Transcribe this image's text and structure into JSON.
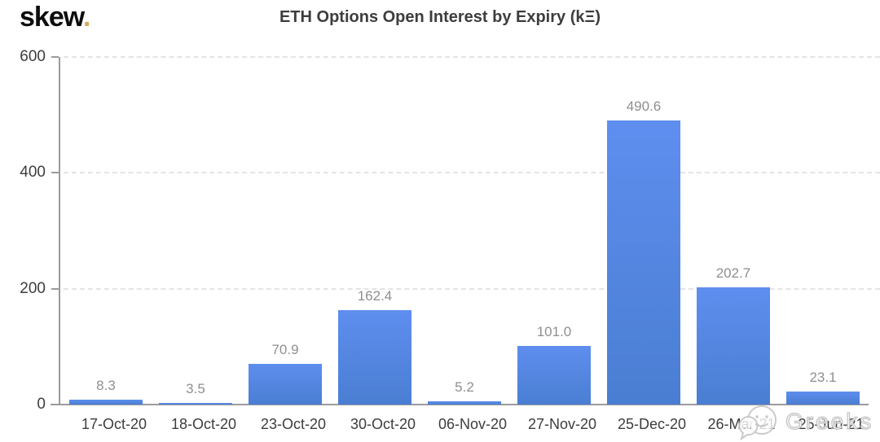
{
  "logo": {
    "text": "skew",
    "dot": "."
  },
  "title": "ETH Options Open Interest by Expiry (kΞ)",
  "watermark": {
    "text": "Greeks",
    "icon": "chat-bubbles-smiley-icon"
  },
  "chart_data": {
    "type": "bar",
    "title": "ETH Options Open Interest by Expiry (kΞ)",
    "categories": [
      "17-Oct-20",
      "18-Oct-20",
      "23-Oct-20",
      "30-Oct-20",
      "06-Nov-20",
      "27-Nov-20",
      "25-Dec-20",
      "26-Mar-21",
      "25-Jun-21"
    ],
    "values": [
      8.3,
      3.5,
      70.9,
      162.4,
      5.2,
      101.0,
      490.6,
      202.7,
      23.1
    ],
    "value_labels": [
      "8.3",
      "3.5",
      "70.9",
      "162.4",
      "5.2",
      "101.0",
      "490.6",
      "202.7",
      "23.1"
    ],
    "xlabel": "",
    "ylabel": "",
    "ylim": [
      0,
      600
    ],
    "yticks": [
      0,
      200,
      400,
      600
    ],
    "grid": "horizontal-dashed",
    "legend": "none",
    "colors": {
      "bar_top": "#5e8eef",
      "bar_bottom": "#4a7ed2",
      "axis": "#9b9b9b",
      "gridline": "#e4e4e4",
      "text": "#3d3d3d",
      "value_label": "#8f8f8f",
      "logo_dot": "#d6ab60"
    }
  }
}
